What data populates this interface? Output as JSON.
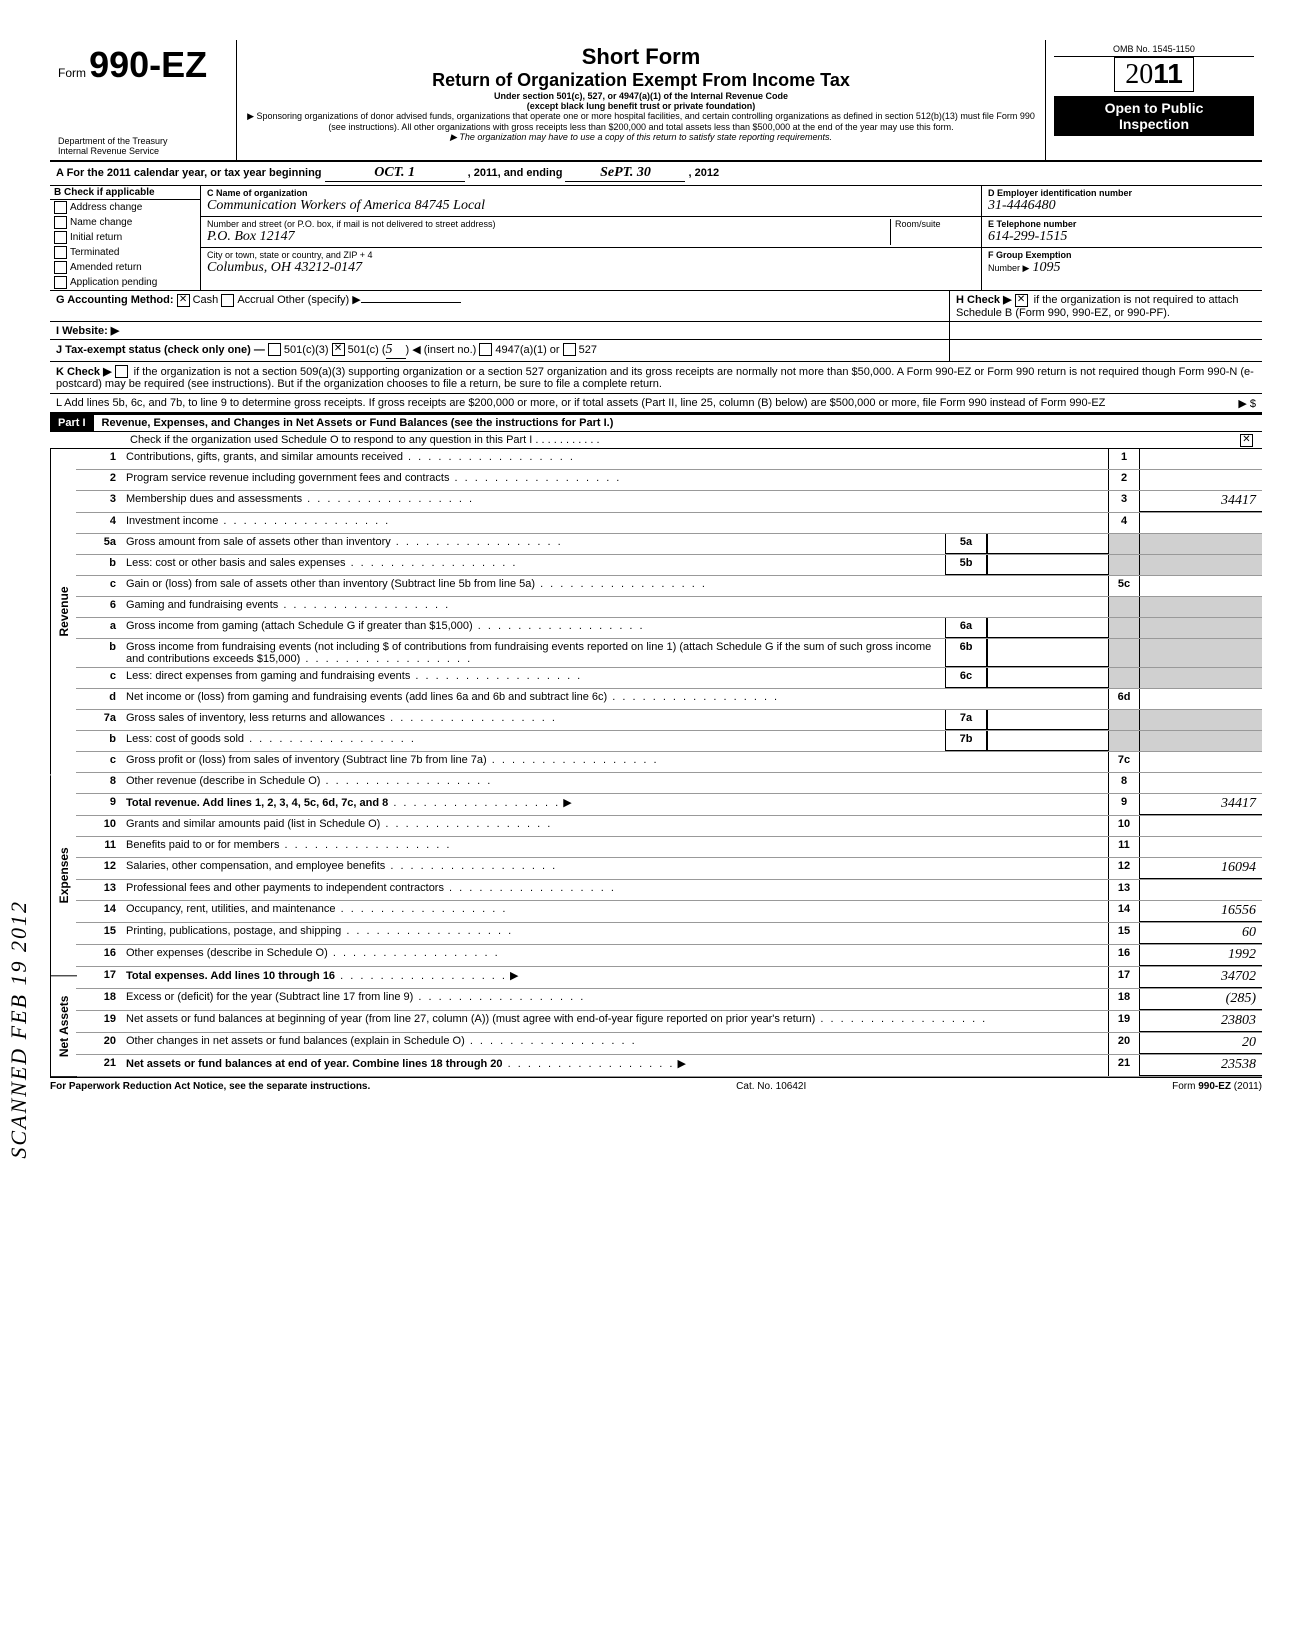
{
  "omb": "OMB No. 1545-1150",
  "form_prefix": "Form",
  "form_number": "990-EZ",
  "arrow_note": "",
  "dept": "Department of the Treasury\nInternal Revenue Service",
  "title1": "Short Form",
  "title2": "Return of Organization Exempt From Income Tax",
  "subtitle1": "Under section 501(c), 527, or 4947(a)(1) of the Internal Revenue Code",
  "subtitle2": "(except black lung benefit trust or private foundation)",
  "sponsor_note": "▶ Sponsoring organizations of donor advised funds, organizations that operate one or more hospital facilities, and certain controlling organizations as defined in section 512(b)(13) must file Form 990 (see instructions). All other organizations with gross receipts less than $200,000 and total assets less than $500,000 at the end of the year may use this form.",
  "state_note": "▶ The organization may have to use a copy of this return to satisfy state reporting requirements.",
  "year": "2011",
  "open": "Open to Public\nInspection",
  "A_text": "A For the 2011 calendar year, or tax year beginning",
  "A_begin": "OCT.   1",
  "A_mid": ", 2011, and ending",
  "A_end": "SePT.   30",
  "A_endyear": ", 2012",
  "B_header": "B  Check if applicable",
  "B_items": [
    "Address change",
    "Name change",
    "Initial return",
    "Terminated",
    "Amended return",
    "Application pending"
  ],
  "C_label": "C Name of organization",
  "C_val": "Communication Workers of America  84745 Local",
  "C_addr_label": "Number and street (or P.O. box, if mail is not delivered to street address)",
  "C_addr": "P.O. Box 12147",
  "C_room_label": "Room/suite",
  "C_city_label": "City or town, state or country, and ZIP + 4",
  "C_city": "Columbus, OH   43212-0147",
  "D_label": "D Employer identification number",
  "D_val": "31-4446480",
  "E_label": "E Telephone number",
  "E_val": "614-299-1515",
  "F_label": "F Group Exemption",
  "F_label2": "Number ▶",
  "F_val": "1095",
  "G_label": "G  Accounting Method:",
  "G_cash": "Cash",
  "G_accrual": "Accrual",
  "G_other": "Other (specify) ▶",
  "H_label": "H  Check ▶",
  "H_text": "if the organization is not required to attach Schedule B (Form 990, 990-EZ, or 990-PF).",
  "I_label": "I   Website: ▶",
  "J_label": "J  Tax-exempt status (check only one) —",
  "J_501c3": "501(c)(3)",
  "J_501c": "501(c) (",
  "J_501c_fill": "5",
  "J_501c_after": ") ◀ (insert no.)",
  "J_4947": "4947(a)(1) or",
  "J_527": "527",
  "K_label": "K  Check ▶",
  "K_text": "if the organization is not a section 509(a)(3) supporting organization or a section 527 organization and its gross receipts are normally not more than $50,000. A Form 990-EZ or Form 990 return is not required though Form 990-N (e-postcard) may be required (see instructions). But if the organization chooses to file a return, be sure to file a complete return.",
  "L_text": "L  Add lines 5b, 6c, and 7b, to line 9 to determine gross receipts. If gross receipts are $200,000 or more, or if total assets (Part II, line 25, column (B) below) are $500,000 or more, file Form 990 instead of Form 990-EZ",
  "L_arrow": "▶  $",
  "part1_label": "Part I",
  "part1_title": "Revenue, Expenses, and Changes in Net Assets or Fund Balances (see the instructions for Part I.)",
  "part1_check": "Check if the organization used Schedule O to respond to any question in this Part I  .   .   .   .   .   .   .   .   .   .   .",
  "side_stamp": "SCANNED FEB 19 2012",
  "side_rev": "Revenue",
  "side_exp": "Expenses",
  "side_na": "Net Assets",
  "lines": {
    "1": {
      "n": "1",
      "t": "Contributions, gifts, grants, and similar amounts received",
      "r": "1",
      "v": ""
    },
    "2": {
      "n": "2",
      "t": "Program service revenue including government fees and contracts",
      "r": "2",
      "v": ""
    },
    "3": {
      "n": "3",
      "t": "Membership dues and assessments",
      "r": "3",
      "v": "34417"
    },
    "4": {
      "n": "4",
      "t": "Investment income",
      "r": "4",
      "v": ""
    },
    "5a": {
      "n": "5a",
      "t": "Gross amount from sale of assets other than inventory",
      "b": "5a"
    },
    "5b": {
      "n": "b",
      "t": "Less: cost or other basis and sales expenses",
      "b": "5b"
    },
    "5c": {
      "n": "c",
      "t": "Gain or (loss) from sale of assets other than inventory (Subtract line 5b from line 5a)",
      "r": "5c",
      "v": ""
    },
    "6": {
      "n": "6",
      "t": "Gaming and fundraising events"
    },
    "6a": {
      "n": "a",
      "t": "Gross income from gaming (attach Schedule G if greater than $15,000)",
      "b": "6a"
    },
    "6b": {
      "n": "b",
      "t": "Gross income from fundraising events (not including  $                        of contributions from fundraising events reported on line 1) (attach Schedule G if the sum of such gross income and contributions exceeds $15,000)",
      "b": "6b"
    },
    "6c": {
      "n": "c",
      "t": "Less: direct expenses from gaming and fundraising events",
      "b": "6c"
    },
    "6d": {
      "n": "d",
      "t": "Net income or (loss) from gaming and fundraising events (add lines 6a and 6b and subtract line 6c)",
      "r": "6d",
      "v": ""
    },
    "7a": {
      "n": "7a",
      "t": "Gross sales of inventory, less returns and allowances",
      "b": "7a"
    },
    "7b": {
      "n": "b",
      "t": "Less: cost of goods sold",
      "b": "7b"
    },
    "7c": {
      "n": "c",
      "t": "Gross profit or (loss) from sales of inventory (Subtract line 7b from line 7a)",
      "r": "7c",
      "v": ""
    },
    "8": {
      "n": "8",
      "t": "Other revenue (describe in Schedule O)",
      "r": "8",
      "v": ""
    },
    "9": {
      "n": "9",
      "t": "Total revenue. Add lines 1, 2, 3, 4, 5c, 6d, 7c, and 8",
      "r": "9",
      "v": "34417",
      "arr": true,
      "bold": true
    },
    "10": {
      "n": "10",
      "t": "Grants and similar amounts paid (list in Schedule O)",
      "r": "10",
      "v": ""
    },
    "11": {
      "n": "11",
      "t": "Benefits paid to or for members",
      "r": "11",
      "v": ""
    },
    "12": {
      "n": "12",
      "t": "Salaries, other compensation, and employee benefits",
      "r": "12",
      "v": "16094"
    },
    "13": {
      "n": "13",
      "t": "Professional fees and other payments to independent contractors",
      "r": "13",
      "v": ""
    },
    "14": {
      "n": "14",
      "t": "Occupancy, rent, utilities, and maintenance",
      "r": "14",
      "v": "16556"
    },
    "15": {
      "n": "15",
      "t": "Printing, publications, postage, and shipping",
      "r": "15",
      "v": "60"
    },
    "16": {
      "n": "16",
      "t": "Other expenses (describe in Schedule O)",
      "r": "16",
      "v": "1992"
    },
    "17": {
      "n": "17",
      "t": "Total expenses. Add lines 10 through 16",
      "r": "17",
      "v": "34702",
      "arr": true,
      "bold": true
    },
    "18": {
      "n": "18",
      "t": "Excess or (deficit) for the year (Subtract line 17 from line 9)",
      "r": "18",
      "v": "(285)"
    },
    "19": {
      "n": "19",
      "t": "Net assets or fund balances at beginning of year (from line 27, column (A)) (must agree with end-of-year figure reported on prior year's return)",
      "r": "19",
      "v": "23803"
    },
    "20": {
      "n": "20",
      "t": "Other changes in net assets or fund balances (explain in Schedule O)",
      "r": "20",
      "v": "20"
    },
    "21": {
      "n": "21",
      "t": "Net assets or fund balances at end of year. Combine lines 18 through 20",
      "r": "21",
      "v": "23538",
      "arr": true,
      "bold": true
    }
  },
  "footer_left": "For Paperwork Reduction Act Notice, see the separate instructions.",
  "footer_mid": "Cat. No. 10642I",
  "footer_right": "Form 990-EZ (2011)"
}
